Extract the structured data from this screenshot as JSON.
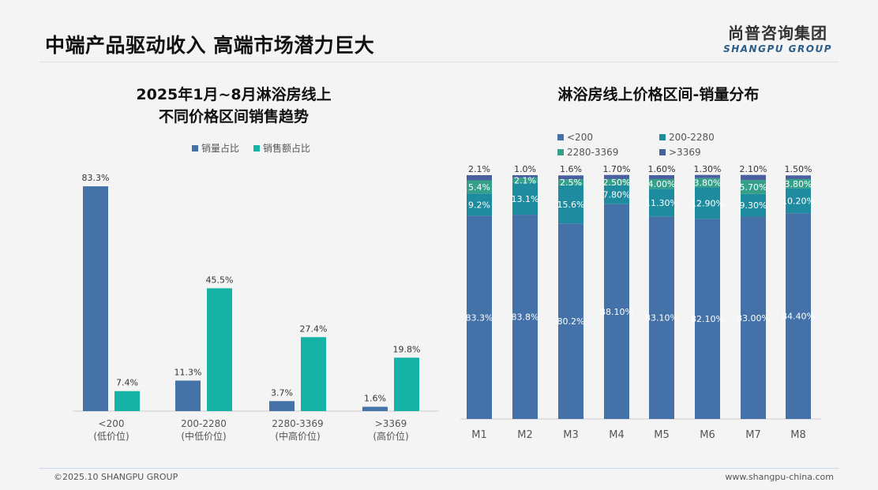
{
  "header": {
    "title": "中端产品驱动收入 高端市场潜力巨大",
    "logo_cn": "尚普咨询集团",
    "logo_en": "SHANGPU GROUP"
  },
  "footer": {
    "copyright": "©2025.10 SHANGPU GROUP",
    "website": "www.shangpu-china.com"
  },
  "colors": {
    "qty": "#4572a7",
    "amt": "#14b3a6",
    "lt200": "#4472a8",
    "r200_2280": "#1e8c9e",
    "r2280_3369": "#34a08a",
    "gt3369": "#4a5f9e"
  },
  "chart_data": [
    {
      "type": "bar",
      "title_line1": "2025年1月~8月淋浴房线上",
      "title_line2": "不同价格区间销售趋势",
      "categories": [
        "<200",
        "200-2280",
        "2280-3369",
        ">3369"
      ],
      "category_sublabels": [
        "(低价位)",
        "(中低价位)",
        "(中高价位)",
        "(高价位)"
      ],
      "series": [
        {
          "name": "销量占比",
          "values": [
            83.3,
            11.3,
            3.7,
            1.6
          ],
          "labels": [
            "83.3%",
            "11.3%",
            "3.7%",
            "1.6%"
          ]
        },
        {
          "name": "销售额占比",
          "values": [
            7.4,
            45.5,
            27.4,
            19.8
          ],
          "labels": [
            "7.4%",
            "45.5%",
            "27.4%",
            "19.8%"
          ]
        }
      ],
      "legend": "top-right",
      "grid": false
    },
    {
      "type": "bar",
      "stacked": true,
      "title": "淋浴房线上价格区间-销量分布",
      "categories": [
        "M1",
        "M2",
        "M3",
        "M4",
        "M5",
        "M6",
        "M7",
        "M8"
      ],
      "series": [
        {
          "name": "<200",
          "values": [
            83.3,
            83.8,
            80.2,
            88.1,
            83.1,
            82.1,
            83.0,
            84.4
          ],
          "labels": [
            "83.3%",
            "83.8%",
            "80.2%",
            "88.10%",
            "83.10%",
            "82.10%",
            "83.00%",
            "84.40%"
          ]
        },
        {
          "name": "200-2280",
          "values": [
            9.2,
            13.1,
            15.6,
            7.8,
            11.3,
            12.9,
            9.3,
            10.2
          ],
          "labels": [
            "9.2%",
            "13.1%",
            "15.6%",
            "7.80%",
            "11.30%",
            "12.90%",
            "9.30%",
            "10.20%"
          ]
        },
        {
          "name": "2280-3369",
          "values": [
            5.4,
            2.1,
            2.5,
            2.5,
            4.0,
            3.8,
            5.7,
            3.8
          ],
          "labels": [
            "5.4%",
            "2.1%",
            "2.5%",
            "2.50%",
            "4.00%",
            "3.80%",
            "5.70%",
            "3.80%"
          ]
        },
        {
          "name": ">3369",
          "values": [
            2.1,
            1.0,
            1.6,
            1.7,
            1.6,
            1.3,
            2.1,
            1.5
          ],
          "labels": [
            "2.1%",
            "1.0%",
            "1.6%",
            "1.70%",
            "1.60%",
            "1.30%",
            "2.10%",
            "1.50%"
          ]
        }
      ],
      "ylim": [
        0,
        100
      ],
      "legend": "top",
      "grid": false
    }
  ]
}
